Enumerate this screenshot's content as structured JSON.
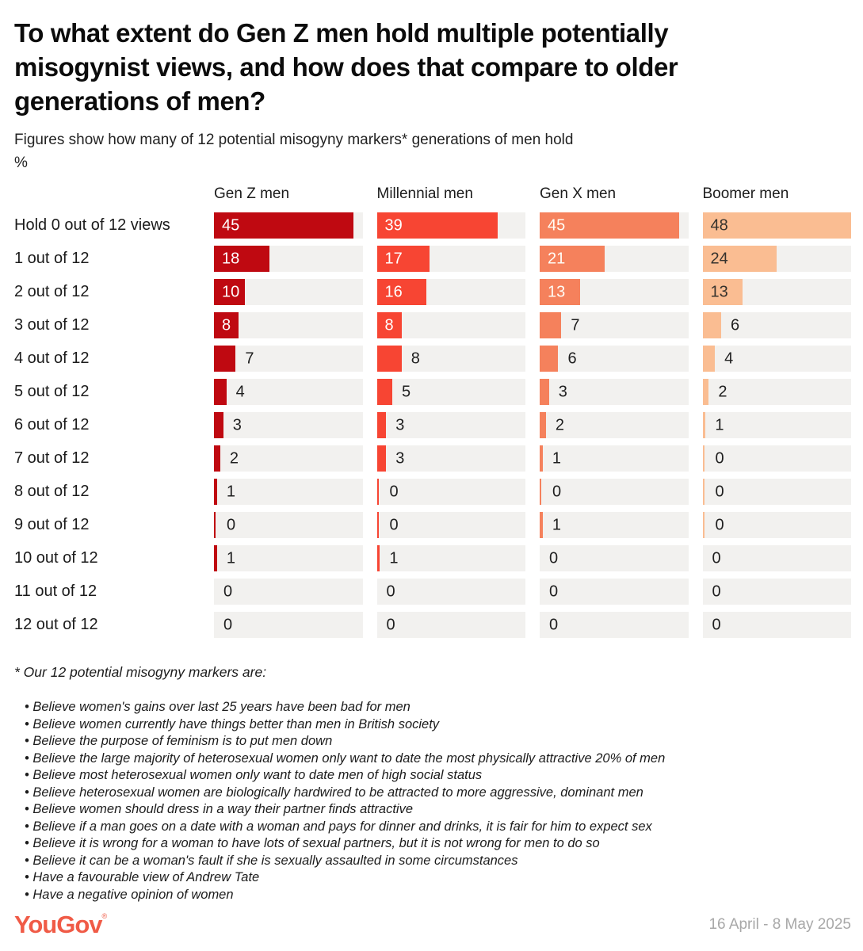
{
  "header": {
    "title": "To what extent do Gen Z men hold multiple potentially misogynist views, and how does that compare to older generations of men?",
    "title_lines": [
      "To what extent do Gen Z men hold multiple potentially",
      "misogynist views, and how does that compare to older",
      "generations of men?"
    ],
    "subtitle": "Figures show how many of 12 potential misogyny markers* generations of men hold",
    "unit_label": "%"
  },
  "chart_data": {
    "type": "bar",
    "orientation": "horizontal",
    "value_unit": "%",
    "scale_max": 48,
    "track_color": "#f2f1ef",
    "grid": false,
    "categories": [
      "Hold 0 out of 12 views",
      "1 out of 12",
      "2 out of 12",
      "3 out of 12",
      "4 out of 12",
      "5 out of 12",
      "6 out of 12",
      "7 out of 12",
      "8 out of 12",
      "9 out of 12",
      "10 out of 12",
      "11 out of 12",
      "12 out of 12"
    ],
    "series": [
      {
        "name": "Gen Z men",
        "color": "#bf0911",
        "label_in_color": "#ffffff",
        "label_out_color": "#1f1f1f",
        "values": [
          45,
          18,
          10,
          8,
          7,
          4,
          3,
          2,
          1,
          0,
          1,
          0,
          0
        ],
        "label_inside_rows": [
          0,
          1,
          2,
          3
        ],
        "hairline_zero_rows": [
          9
        ]
      },
      {
        "name": "Millennial men",
        "color": "#f74533",
        "label_in_color": "#ffffff",
        "label_out_color": "#1f1f1f",
        "values": [
          39,
          17,
          16,
          8,
          8,
          5,
          3,
          3,
          0,
          0,
          1,
          0,
          0
        ],
        "label_inside_rows": [
          0,
          1,
          2,
          3
        ],
        "hairline_zero_rows": [
          8,
          9
        ]
      },
      {
        "name": "Gen X men",
        "color": "#f5815c",
        "label_in_color": "#fffdf6",
        "label_out_color": "#1f1f1f",
        "values": [
          45,
          21,
          13,
          7,
          6,
          3,
          2,
          1,
          0,
          1,
          0,
          0,
          0
        ],
        "label_inside_rows": [
          0,
          1,
          2
        ],
        "hairline_zero_rows": [
          8
        ]
      },
      {
        "name": "Boomer men",
        "color": "#fabd92",
        "label_in_color": "#35322d",
        "label_out_color": "#1f1f1f",
        "values": [
          48,
          24,
          13,
          6,
          4,
          2,
          1,
          0,
          0,
          0,
          0,
          0,
          0
        ],
        "label_inside_rows": [
          0,
          1,
          2
        ],
        "hairline_zero_rows": [
          7,
          8,
          9
        ]
      }
    ]
  },
  "footnote": {
    "header": "* Our 12 potential misogyny markers are:",
    "items": [
      "Believe women's gains over last 25 years have been bad for men",
      "Believe women currently have things better than men in British society",
      "Believe the purpose of feminism is to put men down",
      "Believe the large majority of heterosexual women only want to date the most physically attractive 20% of men",
      "Believe most heterosexual women only want to date men of high social status",
      "Believe heterosexual women are biologically hardwired to be attracted to more aggressive, dominant men",
      "Believe women should dress in a way their partner finds attractive",
      "Believe if a man goes on a date with a woman and pays for dinner and drinks, it is fair for him to expect sex",
      "Believe it is wrong for a woman to have lots of sexual partners, but it is not wrong for men to do so",
      "Believe it can be a woman's fault if she is sexually assaulted in some circumstances",
      "Have a favourable view of Andrew Tate",
      "Have a negative opinion of women"
    ]
  },
  "footer": {
    "logo": "YouGov",
    "registered_mark": "®",
    "logo_color": "#f05b47",
    "date_range": "16 April - 8 May 2025"
  }
}
